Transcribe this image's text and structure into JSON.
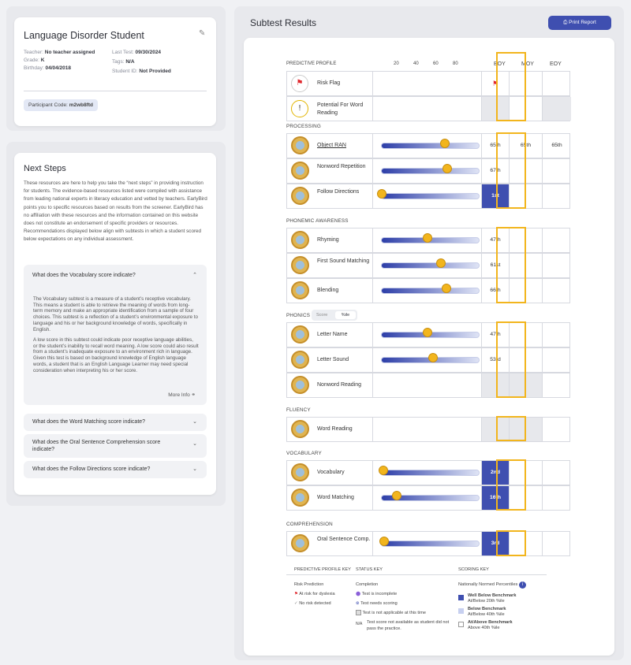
{
  "student": {
    "name": "Language Disorder Student",
    "teacher_label": "Teacher:",
    "teacher_value": "No teacher assigned",
    "grade_label": "Grade:",
    "grade_value": "K",
    "birthday_label": "Birthday:",
    "birthday_value": "04/04/2018",
    "last_test_label": "Last Test:",
    "last_test_value": "09/30/2024",
    "tags_label": "Tags:",
    "tags_value": "N/A",
    "student_id_label": "Student ID:",
    "student_id_value": "Not Provided",
    "participant_code_label": "Participant Code:",
    "participant_code_value": "m2wb8ftd"
  },
  "next_steps": {
    "title": "Next Steps",
    "intro": "These resources are here to help you take the “next steps” in providing instruction for students. The evidence-based resources listed were compiled with assistance from leading national experts in literacy education and vetted by teachers. EarlyBird points you to specific resources based on results from the screener. EarlyBird has no affiliation with these resources and the information contained on this website does not constitute an endorsement of specific providers or resources. Recommendations displayed below align with subtests in which a student scored below expectations on any individual assessment.",
    "accordion": [
      {
        "question": "What does the Vocabulary score indicate?",
        "expanded": true,
        "body_1": "The Vocabulary subtest is a measure of a student’s receptive vocabulary. This means a student is able to retrieve the meaning of words from long-term memory and make an appropriate identification from a sample of four choices. This subtest is a reflection of a student’s environmental exposure to language and his or her background knowledge of words, specifically in English.",
        "body_2": "A low score in this subtest could indicate poor receptive language abilities, or the student’s inability to recall word meaning. A low score could also result from a student’s inadequate exposure to an environment rich in language. Given this test is based on background knowledge of English language words, a student that is an English Language Learner may need special consideration when interpreting his or her score.",
        "more_info": "More Info"
      },
      {
        "question": "What does the Word Matching score indicate?",
        "expanded": false
      },
      {
        "question": "What does the Oral Sentence Comprehension score indicate?",
        "expanded": false
      },
      {
        "question": "What does the Follow Directions score indicate?",
        "expanded": false
      }
    ]
  },
  "results": {
    "title": "Subtest Results",
    "print_label": "Print Report",
    "scale_ticks": [
      "20",
      "40",
      "60",
      "80"
    ],
    "col_boy": "BOY",
    "col_moy": "MOY",
    "col_eoy": "EOY",
    "predictive_profile_label": "PREDICTIVE PROFILE",
    "risk_flag_label": "Risk Flag",
    "potential_label": "Potential For Word Reading",
    "sections": [
      {
        "title": "PROCESSING",
        "rows": [
          {
            "name": "Object RAN",
            "value": 65,
            "boy": "65th",
            "moy": "65th",
            "eoy": "65th",
            "underline": true
          },
          {
            "name": "Nonword Repetition",
            "value": 67,
            "boy": "67th",
            "moy": "",
            "eoy": ""
          },
          {
            "name": "Follow Directions",
            "value": 1,
            "boy": "1st",
            "moy": "",
            "eoy": "",
            "low": true
          }
        ]
      },
      {
        "title": "PHONEMIC AWARENESS",
        "rows": [
          {
            "name": "Rhyming",
            "value": 47,
            "boy": "47th",
            "moy": "",
            "eoy": ""
          },
          {
            "name": "First Sound Matching",
            "value": 61,
            "boy": "61st",
            "moy": "",
            "eoy": ""
          },
          {
            "name": "Blending",
            "value": 66,
            "boy": "66th",
            "moy": "",
            "eoy": ""
          }
        ]
      },
      {
        "title": "PHONICS",
        "toggle": [
          "Score",
          "%ile"
        ],
        "rows": [
          {
            "name": "Letter Name",
            "value": 47,
            "boy": "47th",
            "moy": "",
            "eoy": ""
          },
          {
            "name": "Letter Sound",
            "value": 53,
            "boy": "53rd",
            "moy": "",
            "eoy": ""
          },
          {
            "name": "Nonword Reading",
            "value": null,
            "boy": "",
            "moy": "",
            "eoy": "",
            "gray": true
          }
        ]
      },
      {
        "title": "FLUENCY",
        "rows": [
          {
            "name": "Word Reading",
            "value": null,
            "boy": "",
            "moy": "",
            "eoy": "",
            "gray": true
          }
        ]
      },
      {
        "title": "VOCABULARY",
        "rows": [
          {
            "name": "Vocabulary",
            "value": 2,
            "boy": "2nd",
            "moy": "",
            "eoy": "",
            "low": true
          },
          {
            "name": "Word Matching",
            "value": 16,
            "boy": "16th",
            "moy": "",
            "eoy": "",
            "low": true
          }
        ]
      },
      {
        "title": "COMPREHENSION",
        "rows": [
          {
            "name": "Oral Sentence Comp.",
            "value": 3,
            "boy": "3rd",
            "moy": "",
            "eoy": "",
            "low": true
          }
        ]
      }
    ],
    "keys": {
      "profile_key_title": "PREDICTIVE PROFILE KEY",
      "risk_prediction": "Risk Prediction",
      "at_risk": "At risk for dyslexia",
      "no_risk": "No risk detected",
      "status_key_title": "STATUS KEY",
      "completion": "Completion",
      "incomplete": "Test is incomplete",
      "needs_scoring": "Test needs scoring",
      "not_applicable": "Test is not applicable at this time",
      "na_label": "N/A",
      "na_desc": "Test score not available as student did not pass the practice.",
      "scoring_key_title": "SCORING KEY",
      "national": "Nationally Normed Percentiles",
      "well_below": "Well Below Benchmark",
      "well_below_sub": "At/Below 20th %ile",
      "below": "Below Benchmark",
      "below_sub": "At/Below 40th %ile",
      "above": "At/Above Benchmark",
      "above_sub": "Above 40th %ile"
    },
    "colors": {
      "accent": "#3f4fb0",
      "gold": "#f2b51d",
      "flag": "#e0282e"
    }
  }
}
